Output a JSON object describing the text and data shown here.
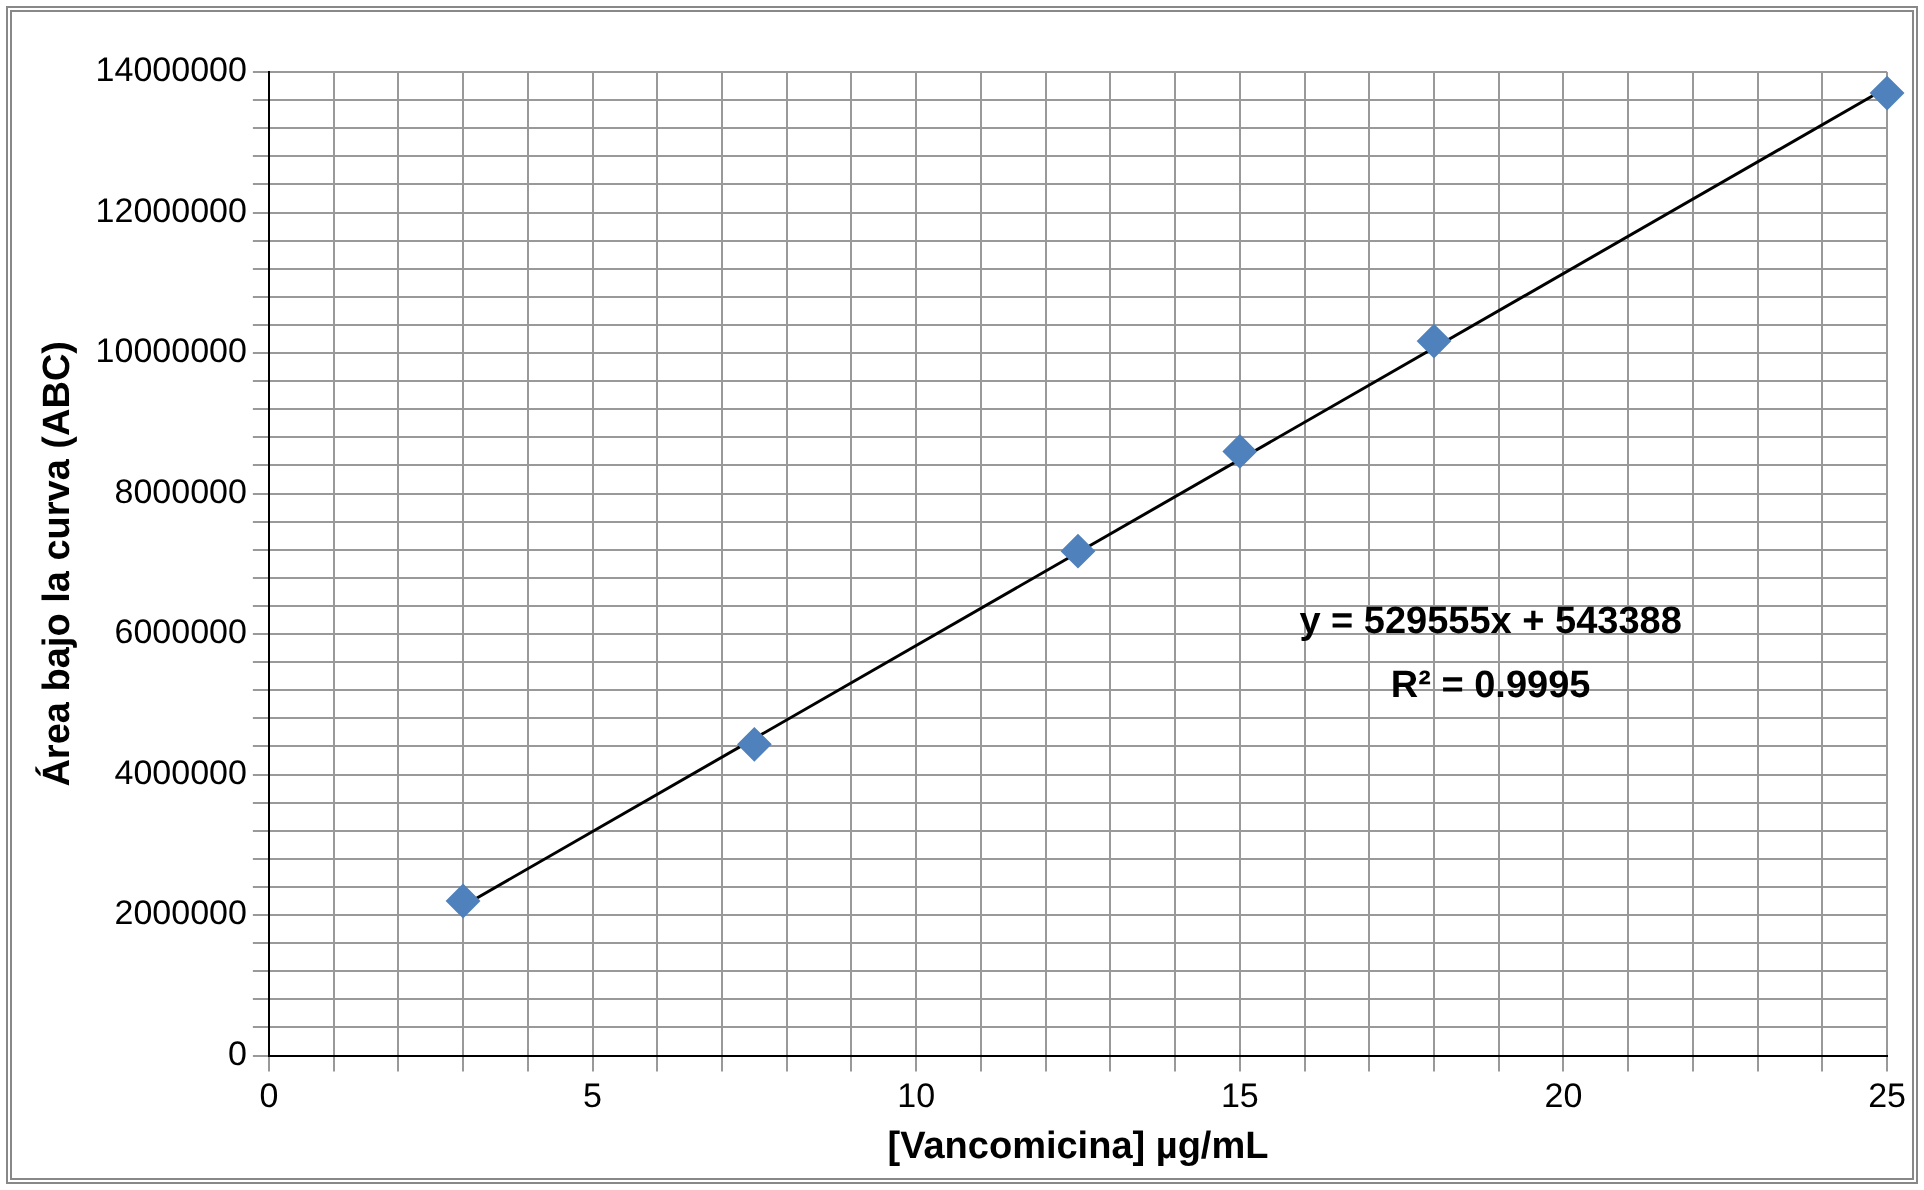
{
  "chart_data": {
    "type": "scatter",
    "xlabel": "[Vancomicina] µg/mL",
    "ylabel": "Área bajo la curva (ABC)",
    "annotations": [
      "y = 529555x + 543388",
      "R² = 0.9995"
    ],
    "xlim": [
      0,
      25
    ],
    "xticks": [
      0,
      {
        "value": 1,
        "label": null
      },
      {
        "value": 2,
        "label": null
      },
      {
        "value": 3,
        "label": null
      },
      {
        "value": 4,
        "label": null
      },
      5,
      {
        "value": 6,
        "label": null
      },
      {
        "value": 7,
        "label": null
      },
      {
        "value": 8,
        "label": null
      },
      {
        "value": 9,
        "label": null
      },
      10,
      {
        "value": 11,
        "label": null
      },
      {
        "value": 12,
        "label": null
      },
      {
        "value": 13,
        "label": null
      },
      {
        "value": 14,
        "label": null
      },
      15,
      {
        "value": 16,
        "label": null
      },
      {
        "value": 17,
        "label": null
      },
      {
        "value": 18,
        "label": null
      },
      {
        "value": 19,
        "label": null
      },
      20,
      {
        "value": 21,
        "label": null
      },
      {
        "value": 22,
        "label": null
      },
      {
        "value": 23,
        "label": null
      },
      {
        "value": 24,
        "label": null
      },
      25
    ],
    "ylim": [
      0,
      14000000
    ],
    "yticks": [
      0,
      {
        "value": 400000,
        "label": null
      },
      {
        "value": 800000,
        "label": null
      },
      {
        "value": 1200000,
        "label": null
      },
      {
        "value": 1600000,
        "label": null
      },
      2000000,
      {
        "value": 2400000,
        "label": null
      },
      {
        "value": 2800000,
        "label": null
      },
      {
        "value": 3200000,
        "label": null
      },
      {
        "value": 3600000,
        "label": null
      },
      4000000,
      {
        "value": 4400000,
        "label": null
      },
      {
        "value": 4800000,
        "label": null
      },
      {
        "value": 5200000,
        "label": null
      },
      {
        "value": 5600000,
        "label": null
      },
      6000000,
      {
        "value": 6400000,
        "label": null
      },
      {
        "value": 6800000,
        "label": null
      },
      {
        "value": 7200000,
        "label": null
      },
      {
        "value": 7600000,
        "label": null
      },
      8000000,
      {
        "value": 8400000,
        "label": null
      },
      {
        "value": 8800000,
        "label": null
      },
      {
        "value": 9200000,
        "label": null
      },
      {
        "value": 9600000,
        "label": null
      },
      10000000,
      {
        "value": 10400000,
        "label": null
      },
      {
        "value": 10800000,
        "label": null
      },
      {
        "value": 11200000,
        "label": null
      },
      {
        "value": 11600000,
        "label": null
      },
      12000000,
      {
        "value": 12400000,
        "label": null
      },
      {
        "value": 12800000,
        "label": null
      },
      {
        "value": 13200000,
        "label": null
      },
      {
        "value": 13600000,
        "label": null
      },
      14000000
    ],
    "grid": true,
    "legend": false,
    "series": [
      {
        "type": "scatter",
        "color": "#4f81bd",
        "marker": "diamond",
        "x": [
          3,
          7.5,
          12.5,
          15,
          18,
          25
        ],
        "values": [
          2200000,
          4430000,
          7180000,
          8600000,
          10170000,
          13700000
        ]
      },
      {
        "type": "line",
        "color": "#000000",
        "marker": "none",
        "line_style": "solid",
        "x": [
          3,
          25
        ],
        "values": [
          2130000,
          13780000
        ]
      }
    ]
  }
}
